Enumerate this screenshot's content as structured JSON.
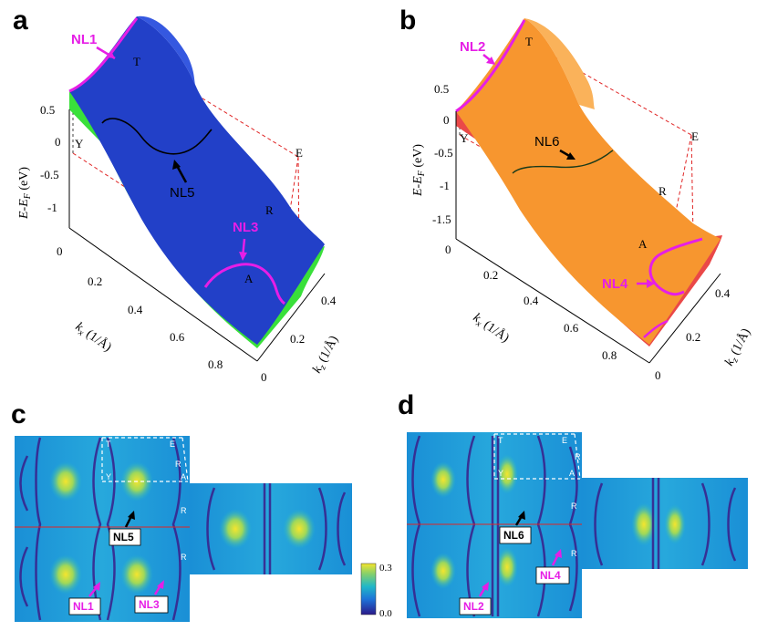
{
  "panels": {
    "a": {
      "letter": "a",
      "nl_labels": [
        "NL1",
        "NL3",
        "NL5"
      ],
      "corners": [
        "T",
        "Y",
        "E",
        "R",
        "A"
      ],
      "y_axis_label": "E-E",
      "y_axis_sub": "F",
      "y_axis_unit": " (eV)",
      "y_ticks": [
        "0.5",
        "0",
        "-0.5",
        "-1"
      ],
      "x_axis_label": "k",
      "x_axis_sub": "x",
      "x_axis_unit": " (1/Å)",
      "x_ticks": [
        "0",
        "0.2",
        "0.4",
        "0.6",
        "0.8"
      ],
      "z_axis_label": "k",
      "z_axis_sub": "z",
      "z_axis_unit": " (1/Å)",
      "z_ticks": [
        "0",
        "0.2",
        "0.4"
      ],
      "surface_colors": [
        "#2240c8",
        "#39e03a"
      ]
    },
    "b": {
      "letter": "b",
      "nl_labels": [
        "NL2",
        "NL4",
        "NL6"
      ],
      "corners": [
        "T",
        "Y",
        "E",
        "R",
        "A"
      ],
      "y_axis_label": "E-E",
      "y_axis_sub": "F",
      "y_axis_unit": " (eV)",
      "y_ticks": [
        "0.5",
        "0",
        "-0.5",
        "-1",
        "-1.5"
      ],
      "x_axis_label": "k",
      "x_axis_sub": "x",
      "x_axis_unit": " (1/Å)",
      "x_ticks": [
        "0",
        "0.2",
        "0.4",
        "0.6",
        "0.8"
      ],
      "z_axis_label": "k",
      "z_axis_sub": "z",
      "z_axis_unit": " (1/Å)",
      "z_ticks": [
        "0",
        "0.2",
        "0.4"
      ],
      "surface_colors": [
        "#f7962f",
        "#ea4848"
      ]
    },
    "c": {
      "letter": "c",
      "boxes": [
        "NL5",
        "NL1",
        "NL3"
      ],
      "points": [
        "T",
        "E",
        "R",
        "Y",
        "A",
        "R",
        "R"
      ]
    },
    "d": {
      "letter": "d",
      "boxes": [
        "NL6",
        "NL2",
        "NL4"
      ],
      "points": [
        "T",
        "E",
        "R",
        "Y",
        "A",
        "R",
        "R"
      ]
    }
  },
  "colorbar": {
    "max_label": "0.3",
    "min_label": "0.0",
    "colors": [
      "#2a1a8a",
      "#1e73d8",
      "#20b8c8",
      "#86d06a",
      "#f4e52e"
    ]
  },
  "colors": {
    "magenta": "#e61ee6",
    "red_dashed": "#e02424",
    "white_dashed": "#ffffff",
    "map_base": "#1fa3d8"
  }
}
